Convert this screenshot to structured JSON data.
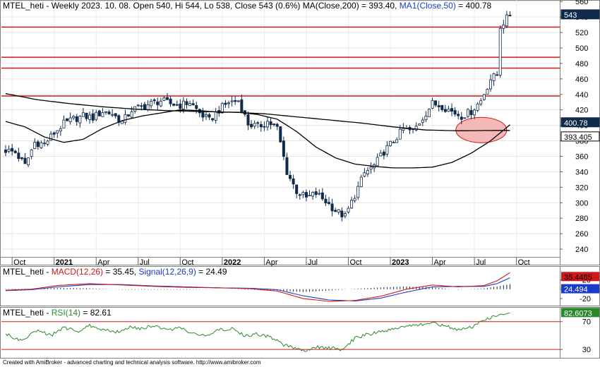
{
  "header": {
    "main": {
      "symbol": "MTEL_heti",
      "info": " - Weekly 2023. 10. 08. Open 540, Hi 544, Lo 538, Close 543 (0.6%) MA(Close,200) = 393.40, ",
      "ma_label": "MA1(Close,50)",
      "ma_value": " = 400.78"
    },
    "macd": {
      "symbol": "MTEL_heti",
      "sep": " - ",
      "macd_label": "MACD(12,26)",
      "macd_value": " = 35.45, ",
      "signal_label": "Signal(12,26,9)",
      "signal_value": " = 24.49"
    },
    "rsi": {
      "symbol": "MTEL_heti",
      "sep": " - ",
      "rsi_label": "RSI(14)",
      "rsi_value": " = 82.61"
    }
  },
  "footer": "Created with AmiBroker - advanced charting and technical analysis software. http://www.amibroker.com",
  "colors": {
    "up": "#ffffff",
    "down": "#0f2a4a",
    "resistance": "#d01818",
    "ma": "#000000",
    "macd": "#d01818",
    "signal": "#1a3cc8",
    "rsi": "#2a8a2a",
    "highlight": "#f5b8b8"
  },
  "chart_data": [
    {
      "type": "candlestick",
      "title": "MTEL_heti - Weekly",
      "y_ticks": [
        240,
        260,
        280,
        300,
        320,
        340,
        360,
        380,
        400,
        420,
        440,
        460,
        480,
        500,
        520,
        540,
        560
      ],
      "ylim": [
        230,
        562
      ],
      "x_labels": [
        {
          "label": "Oct",
          "week": 2,
          "bold": false
        },
        {
          "label": "2021",
          "week": 15,
          "bold": true
        },
        {
          "label": "Apr",
          "week": 28,
          "bold": false
        },
        {
          "label": "Jul",
          "week": 41,
          "bold": false
        },
        {
          "label": "Oct",
          "week": 54,
          "bold": false
        },
        {
          "label": "2022",
          "week": 67,
          "bold": true
        },
        {
          "label": "Apr",
          "week": 80,
          "bold": false
        },
        {
          "label": "Jul",
          "week": 93,
          "bold": false
        },
        {
          "label": "Oct",
          "week": 106,
          "bold": false
        },
        {
          "label": "2023",
          "week": 119,
          "bold": true
        },
        {
          "label": "Apr",
          "week": 132,
          "bold": false
        },
        {
          "label": "Jul",
          "week": 145,
          "bold": false
        },
        {
          "label": "Oct",
          "week": 158,
          "bold": false
        }
      ],
      "resistance_levels": [
        527,
        488,
        474,
        438
      ],
      "close_price": 543,
      "ma200_value": 393.405,
      "ma50_value": 400.78,
      "close_keypoints": [
        [
          0,
          368
        ],
        [
          3,
          365
        ],
        [
          6,
          348
        ],
        [
          9,
          378
        ],
        [
          12,
          376
        ],
        [
          15,
          390
        ],
        [
          18,
          402
        ],
        [
          21,
          408
        ],
        [
          24,
          412
        ],
        [
          27,
          410
        ],
        [
          30,
          418
        ],
        [
          33,
          415
        ],
        [
          36,
          404
        ],
        [
          39,
          420
        ],
        [
          42,
          424
        ],
        [
          45,
          428
        ],
        [
          48,
          432
        ],
        [
          51,
          428
        ],
        [
          54,
          426
        ],
        [
          57,
          430
        ],
        [
          60,
          416
        ],
        [
          63,
          406
        ],
        [
          66,
          420
        ],
        [
          69,
          430
        ],
        [
          72,
          432
        ],
        [
          75,
          402
        ],
        [
          78,
          398
        ],
        [
          81,
          405
        ],
        [
          84,
          396
        ],
        [
          87,
          340
        ],
        [
          90,
          315
        ],
        [
          93,
          306
        ],
        [
          96,
          312
        ],
        [
          99,
          302
        ],
        [
          102,
          290
        ],
        [
          105,
          282
        ],
        [
          108,
          310
        ],
        [
          111,
          338
        ],
        [
          114,
          348
        ],
        [
          117,
          366
        ],
        [
          120,
          380
        ],
        [
          123,
          395
        ],
        [
          126,
          392
        ],
        [
          129,
          410
        ],
        [
          132,
          428
        ],
        [
          135,
          425
        ],
        [
          138,
          418
        ],
        [
          141,
          412
        ],
        [
          144,
          418
        ],
        [
          147,
          432
        ],
        [
          150,
          460
        ],
        [
          152,
          465
        ],
        [
          153,
          528
        ],
        [
          155,
          538
        ],
        [
          156,
          543
        ]
      ],
      "ma200_keypoints": [
        [
          0,
          441
        ],
        [
          10,
          433
        ],
        [
          20,
          428
        ],
        [
          30,
          424
        ],
        [
          40,
          421
        ],
        [
          50,
          419
        ],
        [
          60,
          418
        ],
        [
          70,
          417
        ],
        [
          80,
          415
        ],
        [
          85,
          413
        ],
        [
          90,
          411
        ],
        [
          100,
          407
        ],
        [
          110,
          403
        ],
        [
          120,
          398
        ],
        [
          130,
          394
        ],
        [
          140,
          393
        ],
        [
          150,
          393.4
        ],
        [
          156,
          393.405
        ]
      ],
      "ma50_keypoints": [
        [
          0,
          405
        ],
        [
          6,
          398
        ],
        [
          12,
          385
        ],
        [
          18,
          378
        ],
        [
          24,
          382
        ],
        [
          30,
          396
        ],
        [
          36,
          406
        ],
        [
          42,
          412
        ],
        [
          48,
          416
        ],
        [
          54,
          420
        ],
        [
          60,
          419
        ],
        [
          66,
          417
        ],
        [
          72,
          417
        ],
        [
          78,
          414
        ],
        [
          84,
          408
        ],
        [
          90,
          392
        ],
        [
          96,
          372
        ],
        [
          102,
          358
        ],
        [
          108,
          350
        ],
        [
          114,
          347
        ],
        [
          120,
          345
        ],
        [
          126,
          345
        ],
        [
          132,
          346
        ],
        [
          138,
          352
        ],
        [
          144,
          364
        ],
        [
          150,
          380
        ],
        [
          156,
          400.78
        ]
      ],
      "highlight_circle": {
        "week": 148,
        "price": 394
      }
    },
    {
      "type": "line",
      "title": "MACD(12,26)",
      "y_ticks": [
        -20,
        0,
        20
      ],
      "ylim": [
        -35,
        48
      ],
      "series": [
        {
          "name": "MACD(12,26)",
          "value": 35.45,
          "keypoints": [
            [
              0,
              -2
            ],
            [
              8,
              0
            ],
            [
              16,
              8
            ],
            [
              26,
              12
            ],
            [
              36,
              9
            ],
            [
              46,
              6
            ],
            [
              56,
              4
            ],
            [
              66,
              3
            ],
            [
              76,
              1
            ],
            [
              84,
              -4
            ],
            [
              92,
              -20
            ],
            [
              100,
              -26
            ],
            [
              108,
              -24
            ],
            [
              116,
              -15
            ],
            [
              124,
              0
            ],
            [
              132,
              9
            ],
            [
              140,
              5
            ],
            [
              148,
              8
            ],
            [
              152,
              18
            ],
            [
              156,
              35.45
            ]
          ]
        },
        {
          "name": "Signal(12,26,9)",
          "value": 24.49,
          "keypoints": [
            [
              0,
              -3
            ],
            [
              8,
              -1
            ],
            [
              16,
              5
            ],
            [
              26,
              10
            ],
            [
              36,
              10
            ],
            [
              46,
              7
            ],
            [
              56,
              5
            ],
            [
              66,
              3
            ],
            [
              76,
              2
            ],
            [
              84,
              -1
            ],
            [
              92,
              -14
            ],
            [
              100,
              -23
            ],
            [
              108,
              -25
            ],
            [
              116,
              -19
            ],
            [
              124,
              -6
            ],
            [
              132,
              5
            ],
            [
              140,
              6
            ],
            [
              148,
              6
            ],
            [
              152,
              12
            ],
            [
              156,
              24.49
            ]
          ]
        }
      ]
    },
    {
      "type": "line",
      "title": "RSI(14)",
      "y_ticks": [
        30,
        70
      ],
      "ylim": [
        18,
        90
      ],
      "overbought": 70,
      "oversold": 30,
      "series": [
        {
          "name": "RSI(14)",
          "value": 82.6073,
          "keypoints": [
            [
              0,
              52
            ],
            [
              5,
              42
            ],
            [
              10,
              58
            ],
            [
              14,
              50
            ],
            [
              18,
              62
            ],
            [
              22,
              56
            ],
            [
              26,
              64
            ],
            [
              30,
              58
            ],
            [
              34,
              55
            ],
            [
              38,
              62
            ],
            [
              42,
              60
            ],
            [
              46,
              64
            ],
            [
              50,
              58
            ],
            [
              54,
              62
            ],
            [
              58,
              52
            ],
            [
              62,
              50
            ],
            [
              66,
              58
            ],
            [
              70,
              60
            ],
            [
              74,
              50
            ],
            [
              78,
              52
            ],
            [
              82,
              48
            ],
            [
              86,
              36
            ],
            [
              90,
              32
            ],
            [
              93,
              27
            ],
            [
              96,
              34
            ],
            [
              100,
              32
            ],
            [
              104,
              30
            ],
            [
              108,
              46
            ],
            [
              112,
              52
            ],
            [
              116,
              55
            ],
            [
              120,
              60
            ],
            [
              124,
              62
            ],
            [
              128,
              66
            ],
            [
              132,
              68
            ],
            [
              136,
              64
            ],
            [
              140,
              58
            ],
            [
              144,
              62
            ],
            [
              148,
              72
            ],
            [
              152,
              78
            ],
            [
              156,
              82.6073
            ]
          ]
        }
      ]
    }
  ],
  "axis_badges": {
    "close": "543",
    "ma50": "400.78",
    "ma200": "393.405",
    "macd": "35.4485",
    "signal": "24.494",
    "rsi": "82.6073"
  }
}
